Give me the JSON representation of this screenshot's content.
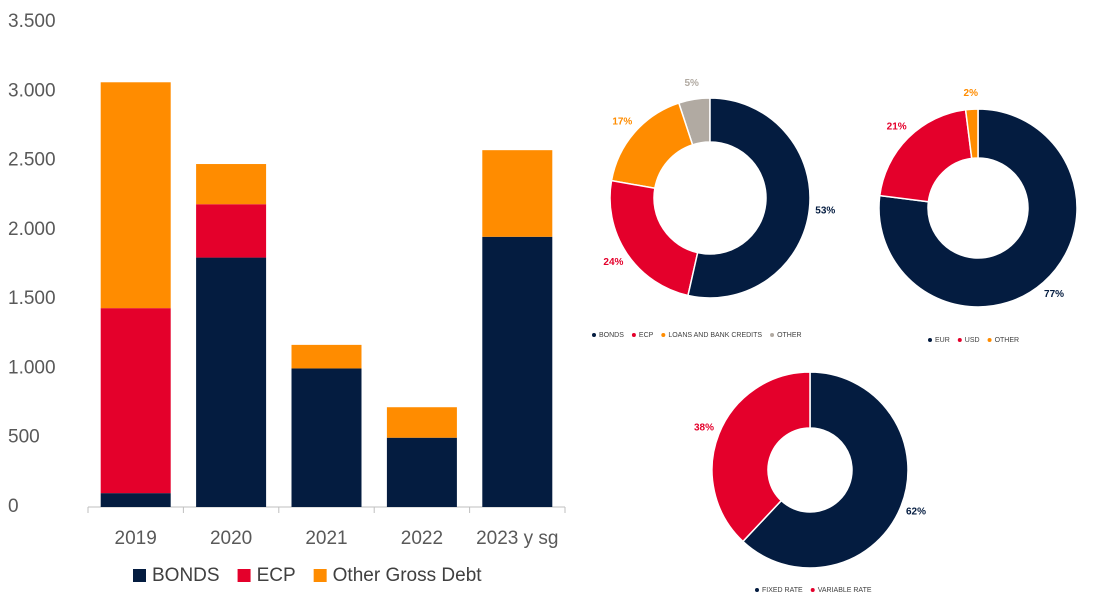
{
  "chart_data": [
    {
      "type": "bar",
      "stacked": true,
      "categories": [
        "2019",
        "2020",
        "2021",
        "2022",
        "2023 y sg"
      ],
      "series": [
        {
          "name": "BONDS",
          "color": "#041c40",
          "values": [
            100,
            1800,
            1000,
            500,
            1950
          ]
        },
        {
          "name": "ECP",
          "color": "#e4002b",
          "values": [
            1335,
            385,
            0,
            0,
            0
          ]
        },
        {
          "name": "Other Gross Debt",
          "color": "#ff8c00",
          "values": [
            1630,
            290,
            170,
            220,
            625
          ]
        }
      ],
      "ylim": [
        0,
        3500
      ],
      "yticks": [
        0,
        500,
        {
          "value": 1000,
          "label": "1.000"
        },
        {
          "value": 1500,
          "label": "1.500"
        },
        {
          "value": 2000,
          "label": "2.000"
        },
        {
          "value": 2500,
          "label": "2.500"
        },
        {
          "value": 3000,
          "label": "3.000"
        },
        {
          "value": 3500,
          "label": "3.500"
        }
      ],
      "grid": false,
      "legend": "bottom"
    },
    {
      "type": "pie",
      "donut": true,
      "categories": [
        "BONDS",
        "ECP",
        "LOANS AND BANK CREDITS",
        "OTHER"
      ],
      "values": [
        53,
        24,
        17,
        5
      ],
      "value_labels": [
        "53%",
        "24%",
        "17%",
        "5%"
      ],
      "colors": [
        "#041c40",
        "#e4002b",
        "#ff8c00",
        "#b1aaa2"
      ],
      "legend": "bottom"
    },
    {
      "type": "pie",
      "donut": true,
      "categories": [
        "EUR",
        "USD",
        "OTHER"
      ],
      "values": [
        77,
        21,
        2
      ],
      "value_labels": [
        "77%",
        "21%",
        "2%"
      ],
      "colors": [
        "#041c40",
        "#e4002b",
        "#ff8c00"
      ],
      "legend": "bottom"
    },
    {
      "type": "pie",
      "donut": true,
      "categories": [
        "FIXED RATE",
        "VARIABLE RATE"
      ],
      "values": [
        62,
        38
      ],
      "value_labels": [
        "62%",
        "38%"
      ],
      "colors": [
        "#041c40",
        "#e4002b"
      ],
      "legend": "bottom"
    }
  ]
}
